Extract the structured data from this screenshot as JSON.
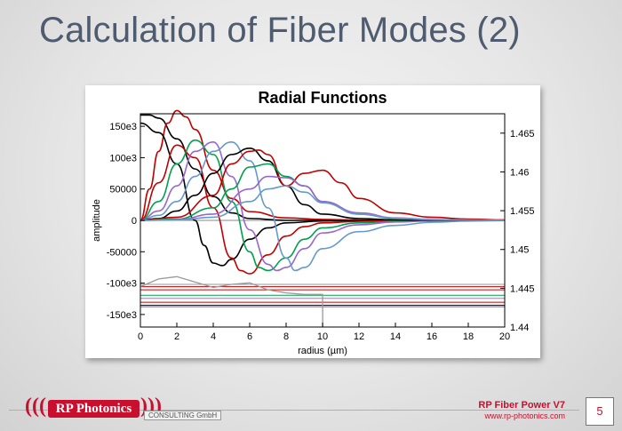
{
  "slide": {
    "title": "Calculation of Fiber Modes (2)",
    "page_number": "5"
  },
  "footer": {
    "logo_text": "RP Photonics",
    "logo_subtext": "CONSULTING GmbH",
    "product_name": "RP Fiber Power V7",
    "website": "www.rp-photonics.com"
  },
  "colors": {
    "brand_red": "#c8102e",
    "title_color": "#4f5b6e"
  },
  "chart_data": {
    "type": "line",
    "title": "Radial Functions",
    "xlabel": "radius (µm)",
    "ylabel": "amplitude",
    "xlim": [
      0,
      20
    ],
    "ylim": [
      -170000,
      170000
    ],
    "y2lim": [
      1.44,
      1.4675
    ],
    "x_ticks": [
      "0",
      "2",
      "4",
      "6",
      "8",
      "10",
      "12",
      "14",
      "16",
      "18",
      "20"
    ],
    "y_ticks": [
      {
        "value": 150000,
        "label": "150e3"
      },
      {
        "value": 100000,
        "label": "100e3"
      },
      {
        "value": 50000,
        "label": "50000"
      },
      {
        "value": 0,
        "label": "0"
      },
      {
        "value": -50000,
        "label": "-50000"
      },
      {
        "value": -100000,
        "label": "-100e3"
      },
      {
        "value": -150000,
        "label": "-150e3"
      }
    ],
    "y2_ticks": [
      "1.44",
      "1.445",
      "1.45",
      "1.455",
      "1.46",
      "1.465"
    ],
    "grid": false,
    "series": [
      {
        "color": "#000000",
        "x": [
          0,
          0.5,
          1,
          2,
          3,
          4,
          5,
          6,
          8,
          10,
          12,
          14,
          16,
          18,
          20
        ],
        "y": [
          168000,
          168000,
          163000,
          130000,
          82000,
          38000,
          12000,
          3000,
          0,
          0,
          0,
          0,
          0,
          0,
          0
        ]
      },
      {
        "color": "#c00000",
        "x": [
          0,
          0.5,
          1,
          1.5,
          2,
          2.5,
          3,
          4,
          5,
          6,
          8,
          10,
          12,
          14,
          16,
          18,
          20
        ],
        "y": [
          0,
          50000,
          110000,
          155000,
          175000,
          165000,
          145000,
          80000,
          35000,
          14000,
          4000,
          1500,
          500,
          200,
          0,
          0,
          0
        ]
      },
      {
        "color": "#000000",
        "x": [
          0,
          1,
          2,
          3,
          3.5,
          4,
          4.5,
          5,
          6,
          7,
          8,
          10,
          12,
          14,
          16,
          18,
          20
        ],
        "y": [
          155000,
          140000,
          90000,
          0,
          -40000,
          -68000,
          -72000,
          -62000,
          -30000,
          -12000,
          -4000,
          -1000,
          -300,
          0,
          0,
          0,
          0
        ]
      },
      {
        "color": "#c00000",
        "x": [
          0,
          1,
          2,
          3,
          4,
          5,
          5.5,
          6,
          7,
          8,
          9,
          10,
          12,
          14,
          16,
          18,
          20
        ],
        "y": [
          0,
          60000,
          120000,
          100000,
          20000,
          -60000,
          -80000,
          -85000,
          -55000,
          -25000,
          -10000,
          -4000,
          -1500,
          -500,
          -200,
          0,
          0
        ]
      },
      {
        "color": "#00a050",
        "x": [
          0,
          1,
          2,
          3,
          4,
          5,
          6,
          6.5,
          7,
          8,
          9,
          10,
          12,
          14,
          16,
          18,
          20
        ],
        "y": [
          0,
          30000,
          90000,
          128000,
          105000,
          30000,
          -50000,
          -75000,
          -80000,
          -60000,
          -30000,
          -12000,
          -4000,
          -1500,
          -500,
          -200,
          0
        ]
      },
      {
        "color": "#9966cc",
        "x": [
          0,
          1,
          2,
          3,
          4,
          5,
          6,
          7,
          7.5,
          8,
          9,
          10,
          12,
          14,
          16,
          18,
          20
        ],
        "y": [
          0,
          15000,
          55000,
          110000,
          125000,
          70000,
          -15000,
          -70000,
          -80000,
          -75000,
          -45000,
          -20000,
          -7000,
          -2500,
          -800,
          -300,
          0
        ]
      },
      {
        "color": "#6699cc",
        "x": [
          0,
          1,
          2,
          3,
          4,
          5,
          6,
          7,
          8,
          8.5,
          9,
          10,
          12,
          14,
          16,
          18,
          20
        ],
        "y": [
          0,
          8000,
          30000,
          70000,
          110000,
          125000,
          95000,
          20000,
          -60000,
          -80000,
          -75000,
          -45000,
          -18000,
          -8000,
          -3000,
          -1000,
          -300
        ]
      },
      {
        "color": "#000000",
        "x": [
          0,
          1,
          2,
          3,
          4,
          5,
          6,
          7,
          8,
          9,
          10,
          12,
          14,
          16,
          18,
          20
        ],
        "y": [
          0,
          3000,
          15000,
          40000,
          75000,
          105000,
          115000,
          95000,
          55000,
          25000,
          10000,
          3000,
          800,
          200,
          0,
          0
        ]
      },
      {
        "color": "#c00000",
        "x": [
          0,
          2,
          4,
          5,
          6,
          6.5,
          7,
          8,
          9,
          10,
          11,
          12,
          14,
          16,
          18,
          20
        ],
        "y": [
          0,
          5000,
          40000,
          90000,
          110000,
          112000,
          105000,
          55000,
          75000,
          80000,
          60000,
          35000,
          12000,
          5000,
          2000,
          800
        ]
      },
      {
        "color": "#00a050",
        "x": [
          0,
          2,
          4,
          5,
          6,
          7,
          8,
          9,
          10,
          12,
          14,
          16,
          18,
          20
        ],
        "y": [
          0,
          2000,
          20000,
          50000,
          85000,
          90000,
          70000,
          55000,
          30000,
          10000,
          3000,
          1000,
          300,
          0
        ]
      },
      {
        "color": "#9966cc",
        "x": [
          0,
          2,
          4,
          6,
          7,
          8,
          9,
          10,
          12,
          14,
          16,
          18,
          20
        ],
        "y": [
          0,
          1000,
          10000,
          50000,
          70000,
          68000,
          55000,
          30000,
          12000,
          4000,
          1500,
          500,
          0
        ]
      },
      {
        "color": "#6699cc",
        "x": [
          0,
          2,
          4,
          6,
          7,
          8,
          9,
          10,
          12,
          14,
          16,
          18,
          20
        ],
        "y": [
          0,
          500,
          5000,
          30000,
          50000,
          55000,
          45000,
          28000,
          10000,
          3500,
          1200,
          400,
          0
        ]
      }
    ],
    "index_profile": {
      "color": "#999999",
      "x": [
        0,
        1,
        2,
        3,
        4,
        5,
        6,
        7,
        8,
        9,
        10,
        10.01
      ],
      "y": [
        1.4452,
        1.4462,
        1.4465,
        1.4458,
        1.4451,
        1.4455,
        1.4457,
        1.4448,
        1.4444,
        1.4442,
        1.4442,
        1.44
      ]
    },
    "mode_levels": [
      {
        "color": "#999999",
        "y": 1.4455
      },
      {
        "color": "#c00000",
        "y": 1.4452
      },
      {
        "color": "#c00000",
        "y": 1.4448
      },
      {
        "color": "#00a050",
        "y": 1.4441
      },
      {
        "color": "#cc66cc",
        "y": 1.4437
      },
      {
        "color": "#c00000",
        "y": 1.4432
      },
      {
        "color": "#000000",
        "y": 1.4428
      },
      {
        "color": "#9966cc",
        "y": 1.4426
      }
    ]
  }
}
